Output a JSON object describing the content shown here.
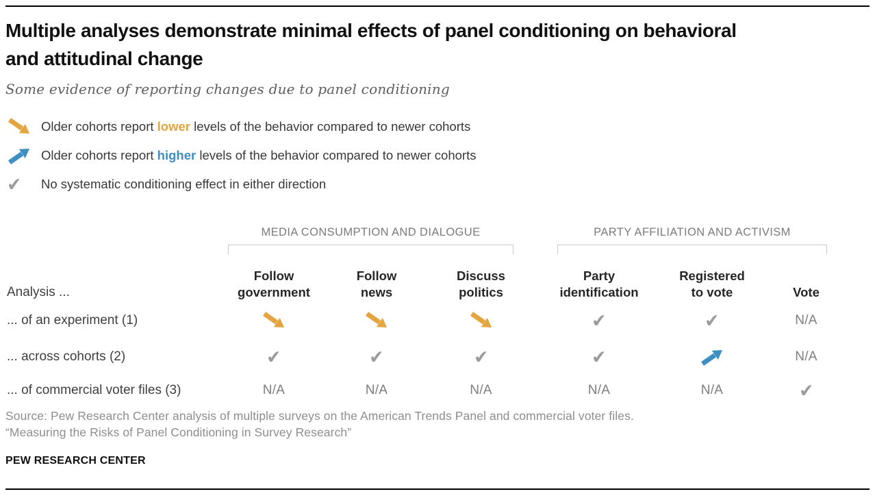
{
  "header": {
    "title_lines": [
      "Multiple analyses demonstrate minimal effects of panel conditioning on behavioral",
      "and attitudinal change"
    ],
    "subtitle": "Some evidence of reporting changes due to panel conditioning"
  },
  "colors": {
    "lower_orange": "#E4A43F",
    "higher_blue": "#3D8EC1",
    "check_gray": "#9B9B9B"
  },
  "legend": [
    {
      "icon": "lower-arrow",
      "pre": "Older cohorts report ",
      "em": "lower",
      "post": " levels of the behavior compared to newer cohorts"
    },
    {
      "icon": "higher-arrow",
      "pre": "Older cohorts report ",
      "em": "higher",
      "post": " levels of the behavior compared to newer cohorts"
    },
    {
      "icon": "check",
      "pre": "No systematic conditioning effect in either direction",
      "em": "",
      "post": ""
    }
  ],
  "chart_data": {
    "type": "table",
    "title": "Multiple analyses demonstrate minimal effects of panel conditioning on behavioral and attitudinal change",
    "subtitle": "Some evidence of reporting changes due to panel conditioning",
    "column_groups": [
      {
        "label": "MEDIA CONSUMPTION AND DIALOGUE",
        "columns": [
          "Follow government",
          "Follow news",
          "Discuss politics"
        ]
      },
      {
        "label": "PARTY AFFILIATION AND ACTIVISM",
        "columns": [
          "Party identification",
          "Registered to vote",
          "Vote"
        ]
      }
    ],
    "cell_legend": {
      "lower": "older cohorts report lower levels",
      "higher": "older cohorts report higher levels",
      "check": "no systematic conditioning effect",
      "na": "not applicable"
    },
    "rows": [
      {
        "label": "... of an experiment (1)",
        "cells": [
          "lower",
          "lower",
          "lower",
          "check",
          "check",
          "na"
        ]
      },
      {
        "label": "... across cohorts (2)",
        "cells": [
          "check",
          "check",
          "check",
          "check",
          "higher",
          "na"
        ]
      },
      {
        "label": "... of commercial voter files (3)",
        "cells": [
          "na",
          "na",
          "na",
          "na",
          "na",
          "check"
        ]
      }
    ]
  },
  "table": {
    "group_headers": [
      "MEDIA CONSUMPTION AND DIALOGUE",
      "PARTY AFFILIATION AND ACTIVISM"
    ],
    "row_header": "Analysis ...",
    "columns": [
      "Follow\ngovernment",
      "Follow\nnews",
      "Discuss\npolitics",
      "Party\nidentification",
      "Registered\nto vote",
      "Vote"
    ],
    "na_label": "N/A",
    "check_glyph": "✔"
  },
  "footer": {
    "source_line1": "Source: Pew Research Center analysis of multiple surveys on the American Trends Panel and commercial voter files.",
    "source_line2": "“Measuring the Risks of Panel Conditioning in Survey Research”",
    "brand": "PEW RESEARCH CENTER"
  }
}
